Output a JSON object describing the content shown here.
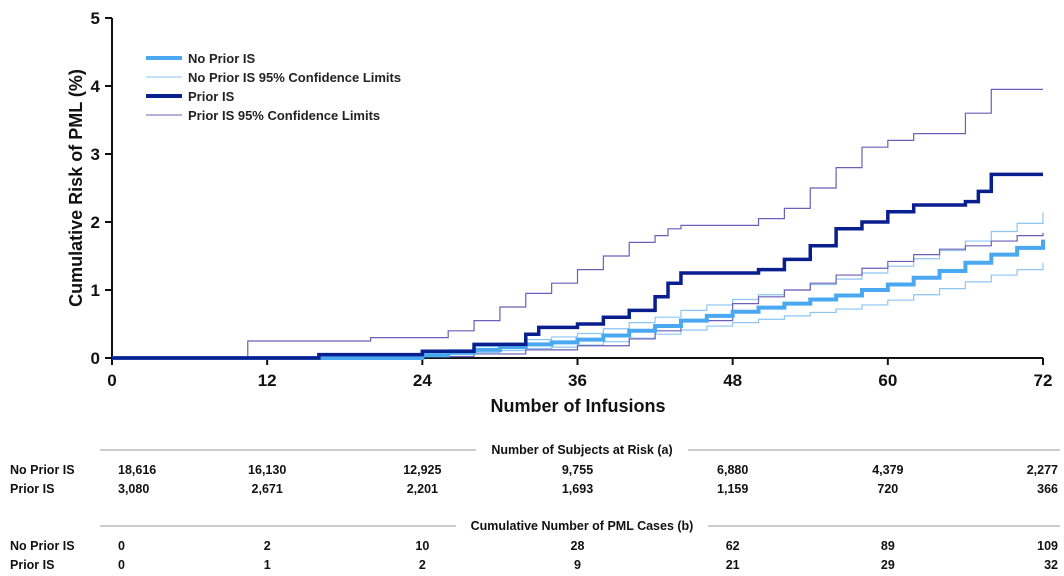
{
  "chart_data": {
    "type": "line",
    "xlabel": "Number of Infusions",
    "ylabel": "Cumulative Risk of PML (%)",
    "xlim": [
      0,
      72
    ],
    "ylim": [
      0,
      5
    ],
    "xticks": [
      0,
      12,
      24,
      36,
      48,
      60,
      72
    ],
    "yticks": [
      0,
      1,
      2,
      3,
      4,
      5
    ],
    "grid": false,
    "legend_position": "top-left",
    "colors": {
      "no_prior": "#4aa8f0",
      "no_prior_ci": "#8cc6f5",
      "prior": "#0a1f8f",
      "prior_ci": "#6b5fb8"
    },
    "series": [
      {
        "name": "No Prior IS",
        "x": [
          0,
          24,
          26,
          28,
          30,
          32,
          34,
          36,
          38,
          40,
          42,
          44,
          46,
          48,
          50,
          52,
          54,
          56,
          58,
          60,
          62,
          64,
          66,
          68,
          70,
          72
        ],
        "values": [
          0,
          0.04,
          0.08,
          0.12,
          0.16,
          0.2,
          0.23,
          0.27,
          0.33,
          0.4,
          0.47,
          0.55,
          0.62,
          0.68,
          0.74,
          0.8,
          0.86,
          0.92,
          1.0,
          1.08,
          1.18,
          1.28,
          1.4,
          1.52,
          1.62,
          1.74
        ]
      },
      {
        "name": "No Prior IS 95% Confidence Limits",
        "x": [
          0,
          24,
          26,
          28,
          30,
          32,
          34,
          36,
          38,
          40,
          42,
          44,
          46,
          48,
          50,
          52,
          54,
          56,
          58,
          60,
          62,
          64,
          66,
          68,
          70,
          72
        ],
        "values": [
          0,
          0.07,
          0.12,
          0.17,
          0.22,
          0.27,
          0.31,
          0.36,
          0.43,
          0.52,
          0.6,
          0.7,
          0.78,
          0.86,
          0.93,
          1.0,
          1.08,
          1.16,
          1.25,
          1.35,
          1.46,
          1.58,
          1.72,
          1.86,
          1.98,
          2.14
        ]
      },
      {
        "name": "No Prior IS 95% Confidence Limits (lower)",
        "x": [
          0,
          24,
          26,
          28,
          30,
          32,
          34,
          36,
          38,
          40,
          42,
          44,
          46,
          48,
          50,
          52,
          54,
          56,
          58,
          60,
          62,
          64,
          66,
          68,
          70,
          72
        ],
        "values": [
          0,
          0.02,
          0.05,
          0.08,
          0.11,
          0.14,
          0.16,
          0.19,
          0.24,
          0.29,
          0.35,
          0.41,
          0.47,
          0.52,
          0.57,
          0.62,
          0.67,
          0.72,
          0.78,
          0.85,
          0.93,
          1.02,
          1.12,
          1.22,
          1.3,
          1.4
        ]
      },
      {
        "name": "Prior IS",
        "x": [
          0,
          16,
          24,
          28,
          32,
          33,
          36,
          38,
          40,
          42,
          43,
          44,
          48,
          50,
          52,
          54,
          56,
          58,
          60,
          62,
          64,
          66,
          67,
          68,
          72
        ],
        "values": [
          0,
          0.05,
          0.1,
          0.2,
          0.35,
          0.45,
          0.5,
          0.6,
          0.7,
          0.9,
          1.1,
          1.25,
          1.25,
          1.3,
          1.45,
          1.65,
          1.9,
          2.0,
          2.15,
          2.25,
          2.25,
          2.3,
          2.45,
          2.7,
          2.7
        ]
      },
      {
        "name": "Prior IS 95% Confidence Limits",
        "x": [
          0,
          10.5,
          20,
          26,
          28,
          30,
          32,
          34,
          36,
          38,
          40,
          42,
          43,
          44,
          50,
          52,
          54,
          56,
          58,
          60,
          62,
          64,
          66,
          68,
          72
        ],
        "values": [
          0,
          0.25,
          0.3,
          0.4,
          0.55,
          0.75,
          0.95,
          1.1,
          1.3,
          1.5,
          1.7,
          1.8,
          1.9,
          1.95,
          2.05,
          2.2,
          2.5,
          2.8,
          3.1,
          3.2,
          3.3,
          3.3,
          3.6,
          3.95,
          3.95
        ]
      },
      {
        "name": "Prior IS 95% Confidence Limits (lower)",
        "x": [
          0,
          24,
          28,
          32,
          36,
          40,
          42,
          44,
          48,
          50,
          52,
          54,
          56,
          58,
          60,
          62,
          64,
          66,
          68,
          70,
          72
        ],
        "values": [
          0,
          0.02,
          0.06,
          0.12,
          0.18,
          0.28,
          0.4,
          0.55,
          0.8,
          0.9,
          1.0,
          1.1,
          1.22,
          1.32,
          1.42,
          1.52,
          1.6,
          1.65,
          1.72,
          1.8,
          1.84
        ]
      }
    ],
    "legend": [
      {
        "label": "No Prior IS",
        "series": "no_prior",
        "width": 4
      },
      {
        "label": "No Prior IS 95% Confidence Limits",
        "series": "no_prior_ci",
        "width": 1
      },
      {
        "label": "Prior IS",
        "series": "prior",
        "width": 4
      },
      {
        "label": "Prior IS 95% Confidence Limits",
        "series": "prior_ci",
        "width": 1
      }
    ]
  },
  "risk_table": {
    "title": "Number of Subjects at Risk (a)",
    "rows": [
      {
        "label": "No Prior IS",
        "values": [
          "18,616",
          "16,130",
          "12,925",
          "9,755",
          "6,880",
          "4,379",
          "2,277"
        ]
      },
      {
        "label": "Prior IS",
        "values": [
          "3,080",
          "2,671",
          "2,201",
          "1,693",
          "1,159",
          "720",
          "366"
        ]
      }
    ]
  },
  "cases_table": {
    "title": "Cumulative Number of PML Cases (b)",
    "rows": [
      {
        "label": "No Prior IS",
        "values": [
          "0",
          "2",
          "10",
          "28",
          "62",
          "89",
          "109"
        ]
      },
      {
        "label": "Prior IS",
        "values": [
          "0",
          "1",
          "2",
          "9",
          "21",
          "29",
          "32"
        ]
      }
    ]
  }
}
